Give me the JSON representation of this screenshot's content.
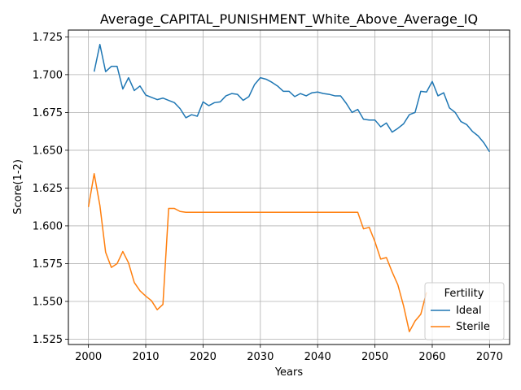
{
  "chart_data": {
    "type": "line",
    "title": "Average_CAPITAL_PUNISHMENT_White_Above_Average_IQ",
    "xlabel": "Years",
    "ylabel": "Score(1-2)",
    "xlim": [
      1996.5,
      2073.5
    ],
    "ylim": [
      1.5215,
      1.7295
    ],
    "xticks": [
      2000,
      2010,
      2020,
      2030,
      2040,
      2050,
      2060,
      2070
    ],
    "yticks": [
      1.525,
      1.55,
      1.575,
      1.6,
      1.625,
      1.65,
      1.675,
      1.7,
      1.725
    ],
    "ytick_labels": [
      "1.525",
      "1.550",
      "1.575",
      "1.600",
      "1.625",
      "1.650",
      "1.675",
      "1.700",
      "1.725"
    ],
    "grid": true,
    "legend": {
      "title": "Fertility",
      "placement": "lower-right"
    },
    "x": [
      2000,
      2001,
      2002,
      2003,
      2004,
      2005,
      2006,
      2007,
      2008,
      2009,
      2010,
      2011,
      2012,
      2013,
      2014,
      2015,
      2016,
      2017,
      2018,
      2019,
      2020,
      2021,
      2022,
      2023,
      2024,
      2025,
      2026,
      2027,
      2028,
      2029,
      2030,
      2031,
      2032,
      2033,
      2034,
      2035,
      2036,
      2037,
      2038,
      2039,
      2040,
      2041,
      2042,
      2043,
      2044,
      2045,
      2046,
      2047,
      2048,
      2049,
      2050,
      2051,
      2052,
      2053,
      2054,
      2055,
      2056,
      2057,
      2058,
      2059,
      2060,
      2061,
      2062,
      2063,
      2064,
      2065,
      2066,
      2067,
      2068,
      2069,
      2070
    ],
    "series": [
      {
        "name": "Ideal",
        "color": "#1f77b4",
        "values": [
          null,
          1.702,
          1.72,
          1.702,
          1.7055,
          1.7055,
          1.6905,
          1.698,
          1.6895,
          1.6925,
          1.6865,
          1.685,
          1.6835,
          1.6845,
          1.683,
          1.6815,
          1.6775,
          1.6715,
          1.6735,
          1.6725,
          1.682,
          1.6795,
          1.6815,
          1.682,
          1.686,
          1.6875,
          1.687,
          1.683,
          1.6855,
          1.6935,
          1.698,
          1.697,
          1.695,
          1.6925,
          1.689,
          1.689,
          1.6855,
          1.6875,
          1.686,
          1.688,
          1.6885,
          1.6875,
          1.687,
          1.686,
          1.686,
          1.681,
          1.675,
          1.677,
          1.6705,
          1.67,
          1.67,
          1.6655,
          1.668,
          1.662,
          1.6645,
          1.6675,
          1.6735,
          1.675,
          1.689,
          1.6885,
          1.6955,
          1.686,
          1.688,
          1.678,
          1.675,
          1.669,
          1.667,
          1.6625,
          1.6595,
          1.655,
          1.649
        ]
      },
      {
        "name": "Sterile",
        "color": "#ff7f0e",
        "values": [
          1.6125,
          1.6345,
          1.6135,
          1.5825,
          1.5725,
          1.575,
          1.583,
          1.5755,
          1.5625,
          1.557,
          1.5535,
          1.5505,
          1.5445,
          1.548,
          1.6115,
          1.6115,
          1.6095,
          1.609,
          1.609,
          1.609,
          1.609,
          1.609,
          1.609,
          1.609,
          1.609,
          1.609,
          1.609,
          1.609,
          1.609,
          1.609,
          1.609,
          1.609,
          1.609,
          1.609,
          1.609,
          1.609,
          1.609,
          1.609,
          1.609,
          1.609,
          1.609,
          1.609,
          1.609,
          1.609,
          1.609,
          1.609,
          1.609,
          1.609,
          1.598,
          1.599,
          1.5895,
          1.578,
          1.579,
          1.5695,
          1.561,
          1.547,
          1.53,
          1.537,
          1.5415,
          1.556,
          null,
          null,
          null,
          null,
          null,
          null,
          null,
          null,
          null,
          null,
          null
        ]
      }
    ]
  }
}
